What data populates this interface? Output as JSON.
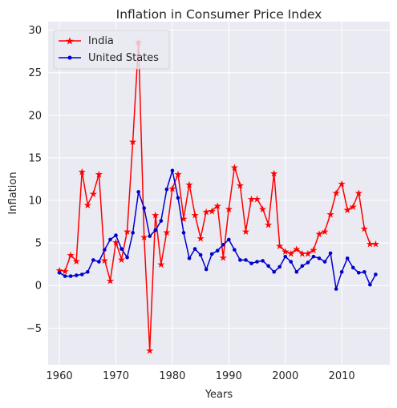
{
  "chart_data": {
    "type": "line",
    "title": "Inflation in Consumer Price Index",
    "xlabel": "Years",
    "ylabel": "Inflation",
    "xlim": [
      1958,
      2018.5
    ],
    "ylim": [
      -9.3,
      31
    ],
    "xticks": [
      1960,
      1970,
      1980,
      1990,
      2000,
      2010
    ],
    "yticks": [
      -5,
      0,
      5,
      10,
      15,
      20,
      25,
      30
    ],
    "grid": true,
    "legend_position": "top-left",
    "x": [
      1960,
      1961,
      1962,
      1963,
      1964,
      1965,
      1966,
      1967,
      1968,
      1969,
      1970,
      1971,
      1972,
      1973,
      1974,
      1975,
      1976,
      1977,
      1978,
      1979,
      1980,
      1981,
      1982,
      1983,
      1984,
      1985,
      1986,
      1987,
      1988,
      1989,
      1990,
      1991,
      1992,
      1993,
      1994,
      1995,
      1996,
      1997,
      1998,
      1999,
      2000,
      2001,
      2002,
      2003,
      2004,
      2005,
      2006,
      2007,
      2008,
      2009,
      2010,
      2011,
      2012,
      2013,
      2014,
      2015,
      2016
    ],
    "series": [
      {
        "name": "India",
        "color": "#ff0000",
        "marker": "star",
        "values": [
          1.8,
          1.7,
          3.6,
          2.9,
          13.4,
          9.5,
          10.8,
          13.1,
          3.0,
          0.6,
          5.1,
          3.1,
          6.4,
          16.9,
          28.6,
          5.7,
          -7.6,
          8.3,
          2.5,
          6.3,
          11.4,
          13.1,
          7.9,
          11.9,
          8.3,
          5.6,
          8.7,
          8.8,
          9.4,
          3.3,
          9.0,
          13.9,
          11.8,
          6.4,
          10.2,
          10.2,
          9.0,
          7.2,
          13.2,
          4.7,
          4.0,
          3.8,
          4.3,
          3.8,
          3.8,
          4.2,
          6.1,
          6.4,
          8.4,
          10.9,
          12.0,
          8.9,
          9.3,
          10.9,
          6.7,
          4.9,
          4.9
        ]
      },
      {
        "name": "United States",
        "color": "#0000cd",
        "marker": "dot",
        "values": [
          1.5,
          1.1,
          1.1,
          1.2,
          1.3,
          1.6,
          3.0,
          2.8,
          4.2,
          5.4,
          5.9,
          4.3,
          3.3,
          6.2,
          11.0,
          9.1,
          5.8,
          6.5,
          7.6,
          11.3,
          13.5,
          10.3,
          6.2,
          3.2,
          4.3,
          3.6,
          1.9,
          3.7,
          4.1,
          4.8,
          5.4,
          4.2,
          3.0,
          3.0,
          2.6,
          2.8,
          2.9,
          2.3,
          1.6,
          2.2,
          3.4,
          2.8,
          1.6,
          2.3,
          2.7,
          3.4,
          3.2,
          2.8,
          3.8,
          -0.4,
          1.6,
          3.2,
          2.1,
          1.5,
          1.6,
          0.1,
          1.3
        ]
      }
    ]
  }
}
